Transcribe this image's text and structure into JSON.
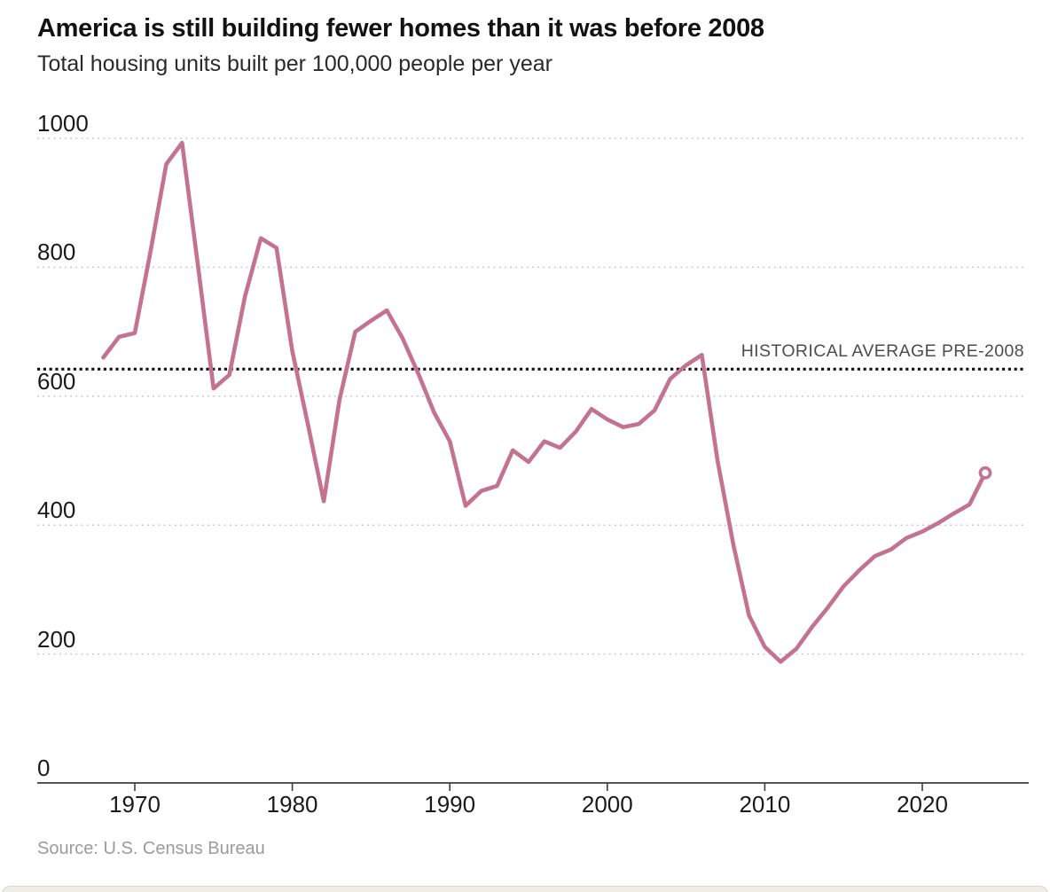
{
  "header": {
    "title": "America is still building fewer homes than it was before 2008",
    "subtitle": "Total housing units built per 100,000 people per year"
  },
  "chart_data": {
    "type": "line",
    "title": "America is still building fewer homes than it was before 2008",
    "ylabel": "Total housing units built per 100,000 people per year",
    "x": [
      1968,
      1969,
      1970,
      1971,
      1972,
      1973,
      1974,
      1975,
      1976,
      1977,
      1978,
      1979,
      1980,
      1981,
      1982,
      1983,
      1984,
      1985,
      1986,
      1987,
      1988,
      1989,
      1990,
      1991,
      1992,
      1993,
      1994,
      1995,
      1996,
      1997,
      1998,
      1999,
      2000,
      2001,
      2002,
      2003,
      2004,
      2005,
      2006,
      2007,
      2008,
      2009,
      2010,
      2011,
      2012,
      2013,
      2014,
      2015,
      2016,
      2017,
      2018,
      2019,
      2020,
      2021,
      2022,
      2023,
      2024
    ],
    "series": [
      {
        "name": "housing-units-built-per-100k-people",
        "values": [
          660,
          692,
          698,
          825,
          960,
          993,
          805,
          612,
          633,
          755,
          845,
          830,
          670,
          555,
          437,
          595,
          700,
          717,
          733,
          690,
          635,
          575,
          530,
          430,
          453,
          461,
          516,
          498,
          530,
          520,
          545,
          580,
          564,
          552,
          557,
          578,
          627,
          648,
          664,
          500,
          370,
          260,
          211,
          188,
          208,
          242,
          272,
          305,
          330,
          352,
          362,
          380,
          390,
          403,
          418,
          432,
          481
        ]
      }
    ],
    "xticks": [
      1970,
      1980,
      1990,
      2000,
      2010,
      2020
    ],
    "yticks": [
      0,
      200,
      400,
      600,
      800,
      1000
    ],
    "ylim": [
      0,
      1000
    ],
    "xlim": [
      1964,
      2027
    ],
    "grid": "horizontal-dotted",
    "legend": "none",
    "line_color": "#c3738e",
    "annotation": {
      "label": "HISTORICAL AVERAGE PRE-2008",
      "value": 642,
      "style": "black-dotted-horizontal-line"
    },
    "endpoint_marker": {
      "year": 2024,
      "value": 481,
      "shape": "open-circle"
    }
  },
  "footer": {
    "source": "Source: U.S. Census Bureau"
  }
}
